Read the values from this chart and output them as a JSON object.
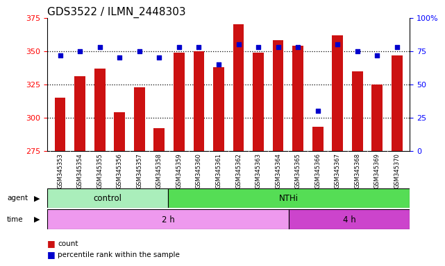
{
  "title": "GDS3522 / ILMN_2448303",
  "samples": [
    "GSM345353",
    "GSM345354",
    "GSM345355",
    "GSM345356",
    "GSM345357",
    "GSM345358",
    "GSM345359",
    "GSM345360",
    "GSM345361",
    "GSM345362",
    "GSM345363",
    "GSM345364",
    "GSM345365",
    "GSM345366",
    "GSM345367",
    "GSM345368",
    "GSM345369",
    "GSM345370"
  ],
  "counts": [
    315,
    331,
    337,
    304,
    323,
    292,
    349,
    350,
    338,
    370,
    349,
    358,
    354,
    293,
    362,
    335,
    325,
    347
  ],
  "percentile_ranks": [
    72,
    75,
    78,
    70,
    75,
    70,
    78,
    78,
    65,
    80,
    78,
    78,
    78,
    30,
    80,
    75,
    72,
    78
  ],
  "bar_color": "#cc1111",
  "dot_color": "#0000cc",
  "left_ylim": [
    275,
    375
  ],
  "left_yticks": [
    275,
    300,
    325,
    350,
    375
  ],
  "right_ylim": [
    0,
    100
  ],
  "right_yticks": [
    0,
    25,
    50,
    75,
    100
  ],
  "right_yticklabels": [
    "0",
    "25",
    "50",
    "75",
    "100%"
  ],
  "agent_groups": [
    {
      "label": "control",
      "start": 0,
      "end": 6,
      "color": "#aaeebb"
    },
    {
      "label": "NTHi",
      "start": 6,
      "end": 18,
      "color": "#55dd55"
    }
  ],
  "time_groups": [
    {
      "label": "2 h",
      "start": 0,
      "end": 12,
      "color": "#ee99ee"
    },
    {
      "label": "4 h",
      "start": 12,
      "end": 18,
      "color": "#cc44cc"
    }
  ],
  "legend_count_color": "#cc1111",
  "legend_pct_color": "#0000cc",
  "legend_count_label": "count",
  "legend_pct_label": "percentile rank within the sample",
  "grid_yticks": [
    300,
    325,
    350
  ],
  "background_color": "white",
  "xticklabel_bg": "#dddddd",
  "title_fontsize": 11
}
